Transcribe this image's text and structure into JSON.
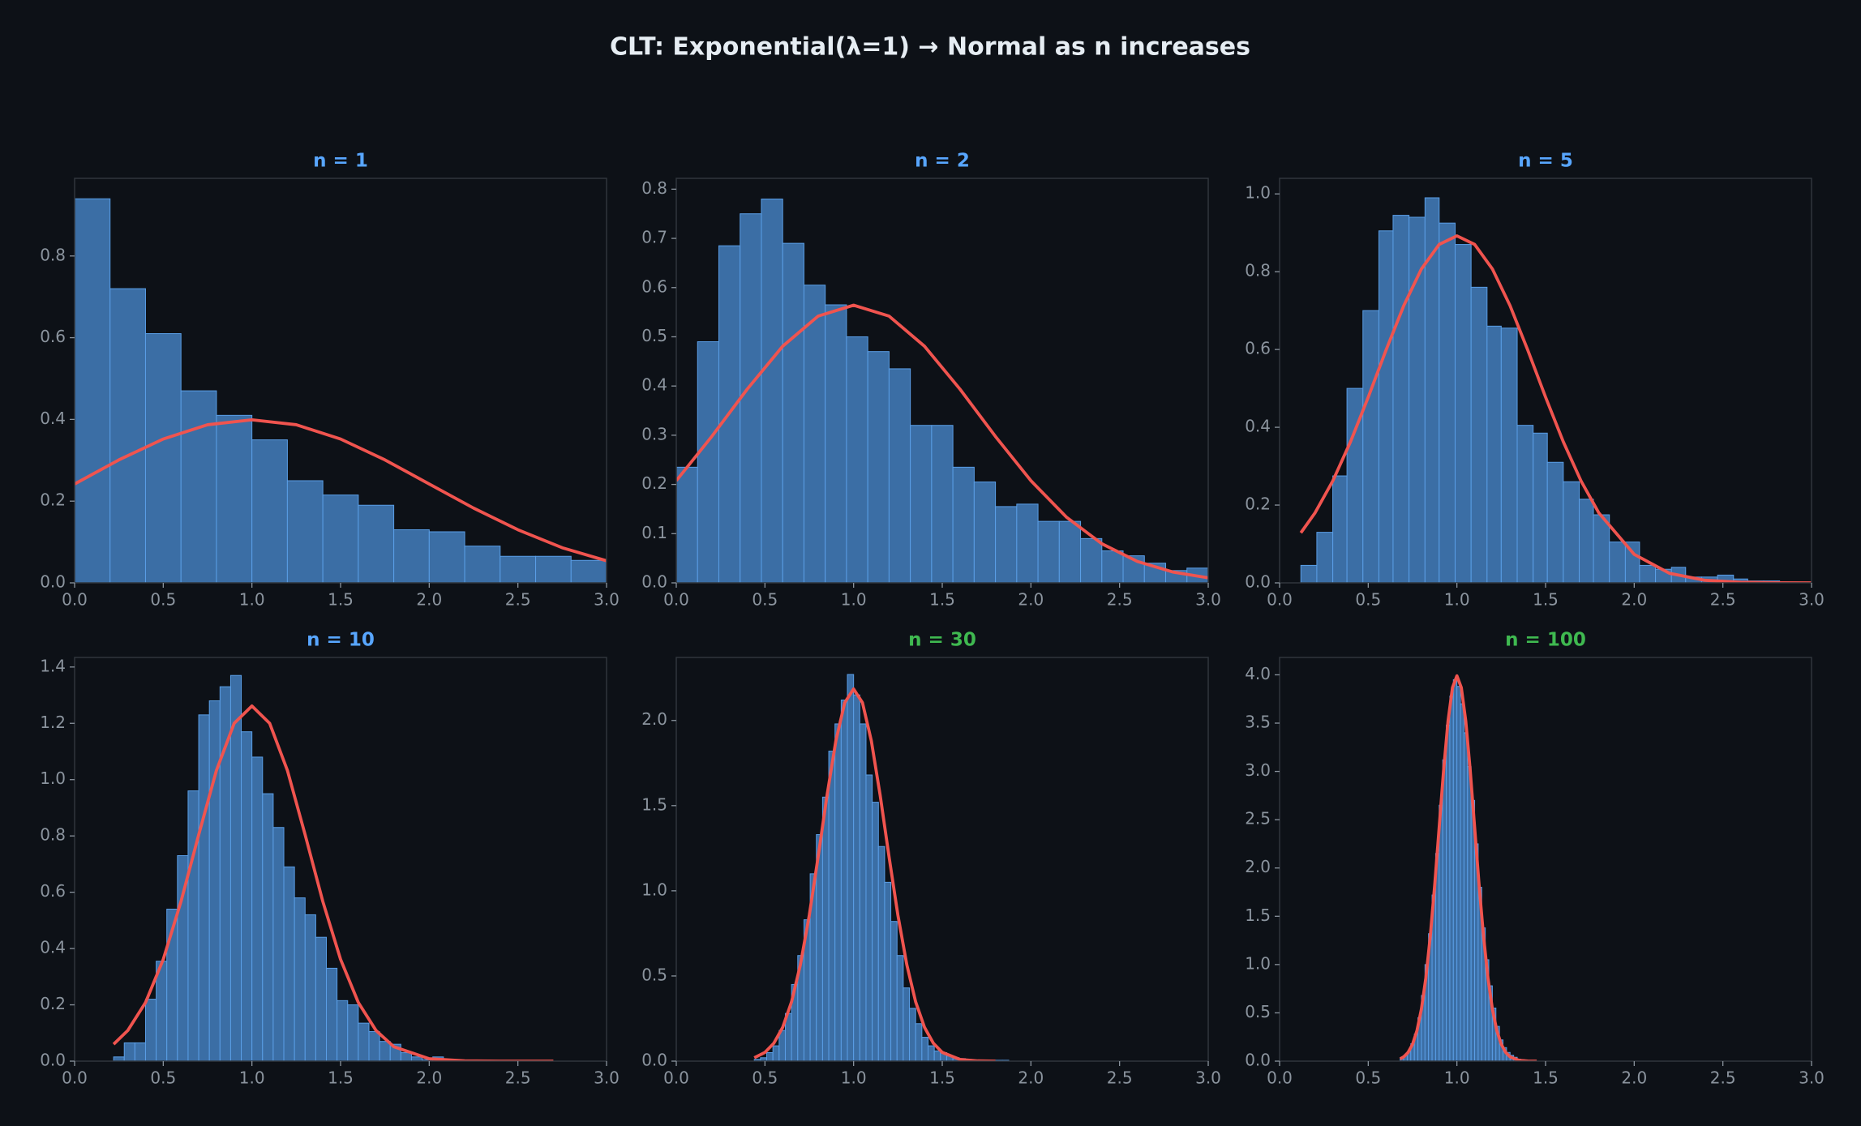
{
  "title": "CLT: Exponential(λ=1) → Normal as n increases",
  "chart_data": [
    {
      "type": "histogram",
      "title": "n = 1",
      "title_color": "#58a6ff",
      "color": "#3b6ea5",
      "edge_color": "#5a9ee6",
      "bins": [
        0,
        0.2,
        0.4,
        0.6,
        0.8,
        1.0,
        1.2,
        1.4,
        1.6,
        1.8,
        2.0,
        2.2,
        2.4,
        2.6,
        2.8,
        3.0
      ],
      "values": [
        0.94,
        0.72,
        0.61,
        0.47,
        0.41,
        0.35,
        0.25,
        0.215,
        0.19,
        0.13,
        0.125,
        0.09,
        0.065,
        0.065,
        0.055
      ],
      "line": {
        "color": "#f0544f",
        "x": [
          0,
          0.25,
          0.5,
          0.75,
          1,
          1.25,
          1.5,
          1.75,
          2,
          2.25,
          2.5,
          2.75,
          3
        ],
        "values": [
          0.242,
          0.301,
          0.352,
          0.387,
          0.399,
          0.387,
          0.352,
          0.301,
          0.242,
          0.183,
          0.13,
          0.086,
          0.054
        ]
      },
      "xlim": [
        0,
        3
      ],
      "xticks": [
        {
          "value": 0,
          "label": "0.0"
        },
        0.5,
        {
          "value": 1,
          "label": "1.0"
        },
        1.5,
        {
          "value": 2,
          "label": "2.0"
        },
        2.5,
        {
          "value": 3,
          "label": "3.0"
        }
      ],
      "ylim": [
        0,
        0.99
      ],
      "yticks": [
        {
          "value": 0,
          "label": "0.0"
        },
        0.2,
        0.4,
        0.6,
        0.8
      ]
    },
    {
      "type": "histogram",
      "title": "n = 2",
      "title_color": "#58a6ff",
      "color": "#3b6ea5",
      "edge_color": "#5a9ee6",
      "bins": [
        0,
        0.12,
        0.24,
        0.36,
        0.48,
        0.6,
        0.72,
        0.84,
        0.96,
        1.08,
        1.2,
        1.32,
        1.44,
        1.56,
        1.68,
        1.8,
        1.92,
        2.04,
        2.16,
        2.28,
        2.4,
        2.52,
        2.64,
        2.76,
        2.88,
        3.0
      ],
      "values": [
        0.235,
        0.49,
        0.685,
        0.75,
        0.78,
        0.69,
        0.605,
        0.565,
        0.5,
        0.47,
        0.435,
        0.32,
        0.32,
        0.235,
        0.205,
        0.155,
        0.16,
        0.125,
        0.125,
        0.09,
        0.065,
        0.055,
        0.04,
        0.025,
        0.03
      ],
      "line": {
        "color": "#f0544f",
        "x": [
          0,
          0.2,
          0.4,
          0.6,
          0.8,
          1.0,
          1.2,
          1.4,
          1.6,
          1.8,
          2.0,
          2.2,
          2.4,
          2.6,
          2.8,
          3.0
        ],
        "values": [
          0.2076,
          0.2975,
          0.3936,
          0.4808,
          0.5421,
          0.5642,
          0.5421,
          0.4808,
          0.3936,
          0.2975,
          0.2076,
          0.1337,
          0.0795,
          0.0436,
          0.0221,
          0.0103
        ]
      },
      "xlim": [
        0,
        3
      ],
      "xticks": [
        {
          "value": 0,
          "label": "0.0"
        },
        0.5,
        {
          "value": 1,
          "label": "1.0"
        },
        1.5,
        {
          "value": 2,
          "label": "2.0"
        },
        2.5,
        {
          "value": 3,
          "label": "3.0"
        }
      ],
      "ylim": [
        0,
        0.822
      ],
      "yticks": [
        {
          "value": 0,
          "label": "0.0"
        },
        0.1,
        0.2,
        0.3,
        0.4,
        0.5,
        0.6,
        0.7,
        0.8
      ]
    },
    {
      "type": "histogram",
      "title": "n = 5",
      "title_color": "#58a6ff",
      "color": "#3b6ea5",
      "edge_color": "#5a9ee6",
      "bins": [
        0.12,
        0.21,
        0.3,
        0.38,
        0.47,
        0.56,
        0.64,
        0.73,
        0.82,
        0.9,
        0.99,
        1.08,
        1.17,
        1.25,
        1.34,
        1.43,
        1.51,
        1.6,
        1.69,
        1.77,
        1.86,
        1.95,
        2.03,
        2.12,
        2.21,
        2.29,
        2.38,
        2.47,
        2.56,
        2.64,
        2.73,
        2.82
      ],
      "values": [
        0.045,
        0.13,
        0.275,
        0.5,
        0.7,
        0.905,
        0.945,
        0.94,
        0.99,
        0.925,
        0.87,
        0.76,
        0.66,
        0.655,
        0.405,
        0.385,
        0.31,
        0.26,
        0.215,
        0.175,
        0.105,
        0.105,
        0.045,
        0.035,
        0.04,
        0.015,
        0.015,
        0.02,
        0.01,
        0.005,
        0.005
      ],
      "line": {
        "color": "#f0544f",
        "x": [
          0.12,
          0.2,
          0.3,
          0.4,
          0.5,
          0.6,
          0.7,
          0.8,
          0.9,
          1.0,
          1.1,
          1.2,
          1.3,
          1.4,
          1.5,
          1.6,
          1.7,
          1.8,
          2.0,
          2.2,
          2.4,
          2.6,
          2.8,
          3.0
        ],
        "values": [
          0.1287,
          0.1801,
          0.2621,
          0.3627,
          0.4775,
          0.598,
          0.7123,
          0.8072,
          0.8701,
          0.8921,
          0.8701,
          0.8072,
          0.7123,
          0.598,
          0.4775,
          0.3627,
          0.2621,
          0.1801,
          0.0732,
          0.0244,
          0.0066,
          0.0015,
          0.0003,
          0
        ]
      },
      "xlim": [
        0,
        3
      ],
      "xticks": [
        {
          "value": 0,
          "label": "0.0"
        },
        0.5,
        {
          "value": 1,
          "label": "1.0"
        },
        1.5,
        {
          "value": 2,
          "label": "2.0"
        },
        2.5,
        {
          "value": 3,
          "label": "3.0"
        }
      ],
      "ylim": [
        0,
        1.04
      ],
      "yticks": [
        {
          "value": 0,
          "label": "0.0"
        },
        0.2,
        0.4,
        0.6,
        0.8,
        {
          "value": 1,
          "label": "1.0"
        }
      ]
    },
    {
      "type": "histogram",
      "title": "n = 10",
      "title_color": "#58a6ff",
      "color": "#3b6ea5",
      "edge_color": "#5a9ee6",
      "bins": [
        0.22,
        0.28,
        0.34,
        0.4,
        0.46,
        0.52,
        0.58,
        0.64,
        0.7,
        0.76,
        0.82,
        0.88,
        0.94,
        1.0,
        1.06,
        1.12,
        1.18,
        1.24,
        1.3,
        1.36,
        1.42,
        1.48,
        1.54,
        1.6,
        1.66,
        1.72,
        1.78,
        1.84,
        1.9,
        1.96,
        2.02,
        2.08,
        2.14
      ],
      "values": [
        0.015,
        0.065,
        0.065,
        0.22,
        0.355,
        0.54,
        0.73,
        0.96,
        1.23,
        1.28,
        1.33,
        1.37,
        1.17,
        1.08,
        0.95,
        0.83,
        0.69,
        0.58,
        0.52,
        0.44,
        0.33,
        0.215,
        0.2,
        0.135,
        0.105,
        0.07,
        0.06,
        0.03,
        0.015,
        0.005,
        0.015,
        0.005
      ],
      "line": {
        "color": "#f0544f",
        "x": [
          0.22,
          0.3,
          0.4,
          0.5,
          0.6,
          0.7,
          0.8,
          0.9,
          1.0,
          1.1,
          1.2,
          1.3,
          1.4,
          1.5,
          1.6,
          1.7,
          1.8,
          2.0,
          2.2,
          2.4,
          2.7
        ],
        "values": [
          0.0602,
          0.1089,
          0.2085,
          0.3615,
          0.5669,
          0.8044,
          1.0329,
          1.2001,
          1.2616,
          1.2001,
          1.0329,
          0.8044,
          0.5669,
          0.3615,
          0.2085,
          0.1089,
          0.0514,
          0.0085,
          0.0009,
          0.0001,
          0
        ]
      },
      "xlim": [
        0,
        3
      ],
      "xticks": [
        {
          "value": 0,
          "label": "0.0"
        },
        0.5,
        {
          "value": 1,
          "label": "1.0"
        },
        1.5,
        {
          "value": 2,
          "label": "2.0"
        },
        2.5,
        {
          "value": 3,
          "label": "3.0"
        }
      ],
      "ylim": [
        0,
        1.434
      ],
      "yticks": [
        {
          "value": 0,
          "label": "0.0"
        },
        0.2,
        0.4,
        0.6,
        0.8,
        {
          "value": 1,
          "label": "1.0"
        },
        1.2,
        1.4
      ]
    },
    {
      "type": "histogram",
      "title": "n = 30",
      "title_color": "#3fb950",
      "color": "#3b6ea5",
      "edge_color": "#5a9ee6",
      "bins": [
        0.44,
        0.475,
        0.51,
        0.545,
        0.58,
        0.615,
        0.65,
        0.685,
        0.72,
        0.755,
        0.79,
        0.825,
        0.86,
        0.895,
        0.93,
        0.965,
        1.0,
        1.035,
        1.07,
        1.105,
        1.14,
        1.175,
        1.21,
        1.245,
        1.28,
        1.315,
        1.35,
        1.385,
        1.42,
        1.455,
        1.49,
        1.525,
        1.56,
        1.595,
        1.63,
        1.665,
        1.7,
        1.735,
        1.77,
        1.805,
        1.84,
        1.875
      ],
      "values": [
        0.01,
        0.02,
        0.05,
        0.09,
        0.18,
        0.28,
        0.45,
        0.62,
        0.83,
        1.1,
        1.33,
        1.55,
        1.82,
        1.98,
        2.12,
        2.27,
        2.15,
        1.98,
        1.68,
        1.52,
        1.26,
        1.05,
        0.82,
        0.62,
        0.43,
        0.31,
        0.22,
        0.14,
        0.09,
        0.06,
        0.05,
        0.03,
        0.02,
        0.015,
        0.01,
        0.005,
        0.005,
        0,
        0.005,
        0.005,
        0.005
      ],
      "line": {
        "color": "#f0544f",
        "x": [
          0.44,
          0.5,
          0.55,
          0.6,
          0.65,
          0.7,
          0.75,
          0.8,
          0.85,
          0.9,
          0.95,
          1.0,
          1.05,
          1.1,
          1.15,
          1.2,
          1.25,
          1.3,
          1.35,
          1.4,
          1.45,
          1.5,
          1.6,
          1.7,
          1.8
        ],
        "values": [
          0.0198,
          0.0514,
          0.1048,
          0.1982,
          0.3479,
          0.5664,
          0.8557,
          1.1992,
          1.5593,
          1.8807,
          2.1047,
          2.1851,
          2.1047,
          1.8807,
          1.5593,
          1.1992,
          0.8557,
          0.5664,
          0.3479,
          0.1982,
          0.1048,
          0.0514,
          0.0099,
          0.0014,
          0.0001
        ]
      },
      "xlim": [
        0,
        3
      ],
      "xticks": [
        {
          "value": 0,
          "label": "0.0"
        },
        0.5,
        {
          "value": 1,
          "label": "1.0"
        },
        1.5,
        {
          "value": 2,
          "label": "2.0"
        },
        2.5,
        {
          "value": 3,
          "label": "3.0"
        }
      ],
      "ylim": [
        0,
        2.37
      ],
      "yticks": [
        {
          "value": 0,
          "label": "0.0"
        },
        0.5,
        {
          "value": 1,
          "label": "1.0"
        },
        1.5,
        {
          "value": 2,
          "label": "2.0"
        }
      ]
    },
    {
      "type": "histogram",
      "title": "n = 100",
      "title_color": "#3fb950",
      "color": "#3b6ea5",
      "edge_color": "#5a9ee6",
      "bins": [
        0.68,
        0.7,
        0.72,
        0.74,
        0.76,
        0.78,
        0.8,
        0.82,
        0.84,
        0.86,
        0.88,
        0.9,
        0.92,
        0.94,
        0.96,
        0.98,
        1.0,
        1.02,
        1.04,
        1.06,
        1.08,
        1.1,
        1.12,
        1.14,
        1.16,
        1.18,
        1.2,
        1.22,
        1.24,
        1.26,
        1.28,
        1.3,
        1.32,
        1.34,
        1.36,
        1.38,
        1.4,
        1.42,
        1.44
      ],
      "values": [
        0.03,
        0.06,
        0.1,
        0.18,
        0.28,
        0.45,
        0.68,
        1.0,
        1.32,
        1.72,
        2.15,
        2.65,
        3.12,
        3.48,
        3.78,
        3.95,
        3.88,
        3.7,
        3.4,
        3.05,
        2.7,
        2.25,
        1.8,
        1.38,
        1.05,
        0.78,
        0.55,
        0.36,
        0.22,
        0.14,
        0.09,
        0.06,
        0.04,
        0.02,
        0.015,
        0.01,
        0.005,
        0.005
      ],
      "line": {
        "color": "#f0544f",
        "x": [
          0.68,
          0.7,
          0.725,
          0.75,
          0.775,
          0.8,
          0.825,
          0.85,
          0.875,
          0.9,
          0.925,
          0.95,
          0.975,
          1.0,
          1.025,
          1.05,
          1.075,
          1.1,
          1.125,
          1.15,
          1.175,
          1.2,
          1.225,
          1.25,
          1.275,
          1.3,
          1.35,
          1.4,
          1.45
        ],
        "values": [
          0.0238,
          0.0443,
          0.091,
          0.1753,
          0.3175,
          0.5399,
          0.8628,
          1.2952,
          1.8264,
          2.4197,
          3.0113,
          3.5207,
          3.8667,
          3.9894,
          3.8667,
          3.5207,
          3.0113,
          2.4197,
          1.8264,
          1.2952,
          0.8628,
          0.5399,
          0.3175,
          0.1753,
          0.091,
          0.0443,
          0.0087,
          0.0013,
          0.0002
        ]
      },
      "xlim": [
        0,
        3
      ],
      "xticks": [
        {
          "value": 0,
          "label": "0.0"
        },
        0.5,
        {
          "value": 1,
          "label": "1.0"
        },
        1.5,
        {
          "value": 2,
          "label": "2.0"
        },
        2.5,
        {
          "value": 3,
          "label": "3.0"
        }
      ],
      "ylim": [
        0,
        4.18
      ],
      "yticks": [
        {
          "value": 0,
          "label": "0.0"
        },
        0.5,
        {
          "value": 1,
          "label": "1.0"
        },
        1.5,
        {
          "value": 2,
          "label": "2.0"
        },
        2.5,
        {
          "value": 3,
          "label": "3.0"
        },
        3.5,
        {
          "value": 4,
          "label": "4.0"
        }
      ]
    }
  ]
}
